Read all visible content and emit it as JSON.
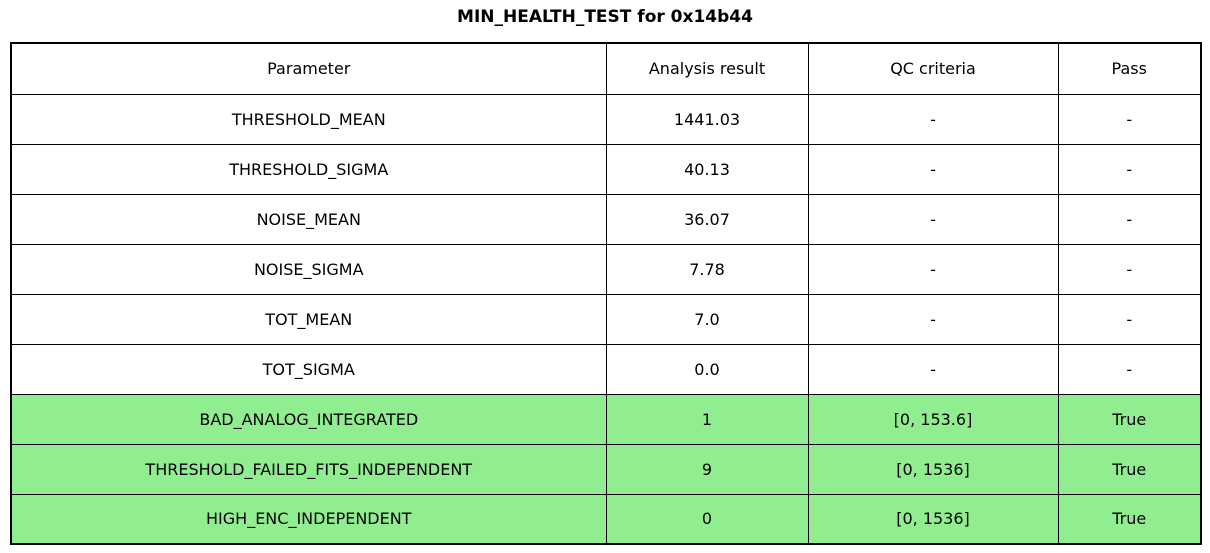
{
  "title": "MIN_HEALTH_TEST for 0x14b44",
  "colors": {
    "pass_row_background": "#90ee90",
    "border": "#000000",
    "page_background": "#ffffff",
    "text": "#000000"
  },
  "chart_data": {
    "type": "table",
    "title": "MIN_HEALTH_TEST for 0x14b44",
    "columns": [
      "Parameter",
      "Analysis result",
      "QC criteria",
      "Pass"
    ],
    "rows": [
      [
        "THRESHOLD_MEAN",
        "1441.03",
        "-",
        "-"
      ],
      [
        "THRESHOLD_SIGMA",
        "40.13",
        "-",
        "-"
      ],
      [
        "NOISE_MEAN",
        "36.07",
        "-",
        "-"
      ],
      [
        "NOISE_SIGMA",
        "7.78",
        "-",
        "-"
      ],
      [
        "TOT_MEAN",
        "7.0",
        "-",
        "-"
      ],
      [
        "TOT_SIGMA",
        "0.0",
        "-",
        "-"
      ],
      [
        "BAD_ANALOG_INTEGRATED",
        "1",
        "[0, 153.6]",
        "True"
      ],
      [
        "THRESHOLD_FAILED_FITS_INDEPENDENT",
        "9",
        "[0, 1536]",
        "True"
      ],
      [
        "HIGH_ENC_INDEPENDENT",
        "0",
        "[0, 1536]",
        "True"
      ]
    ],
    "row_highlighted": [
      false,
      false,
      false,
      false,
      false,
      false,
      true,
      true,
      true
    ],
    "legend_position": "none",
    "grid": true
  }
}
